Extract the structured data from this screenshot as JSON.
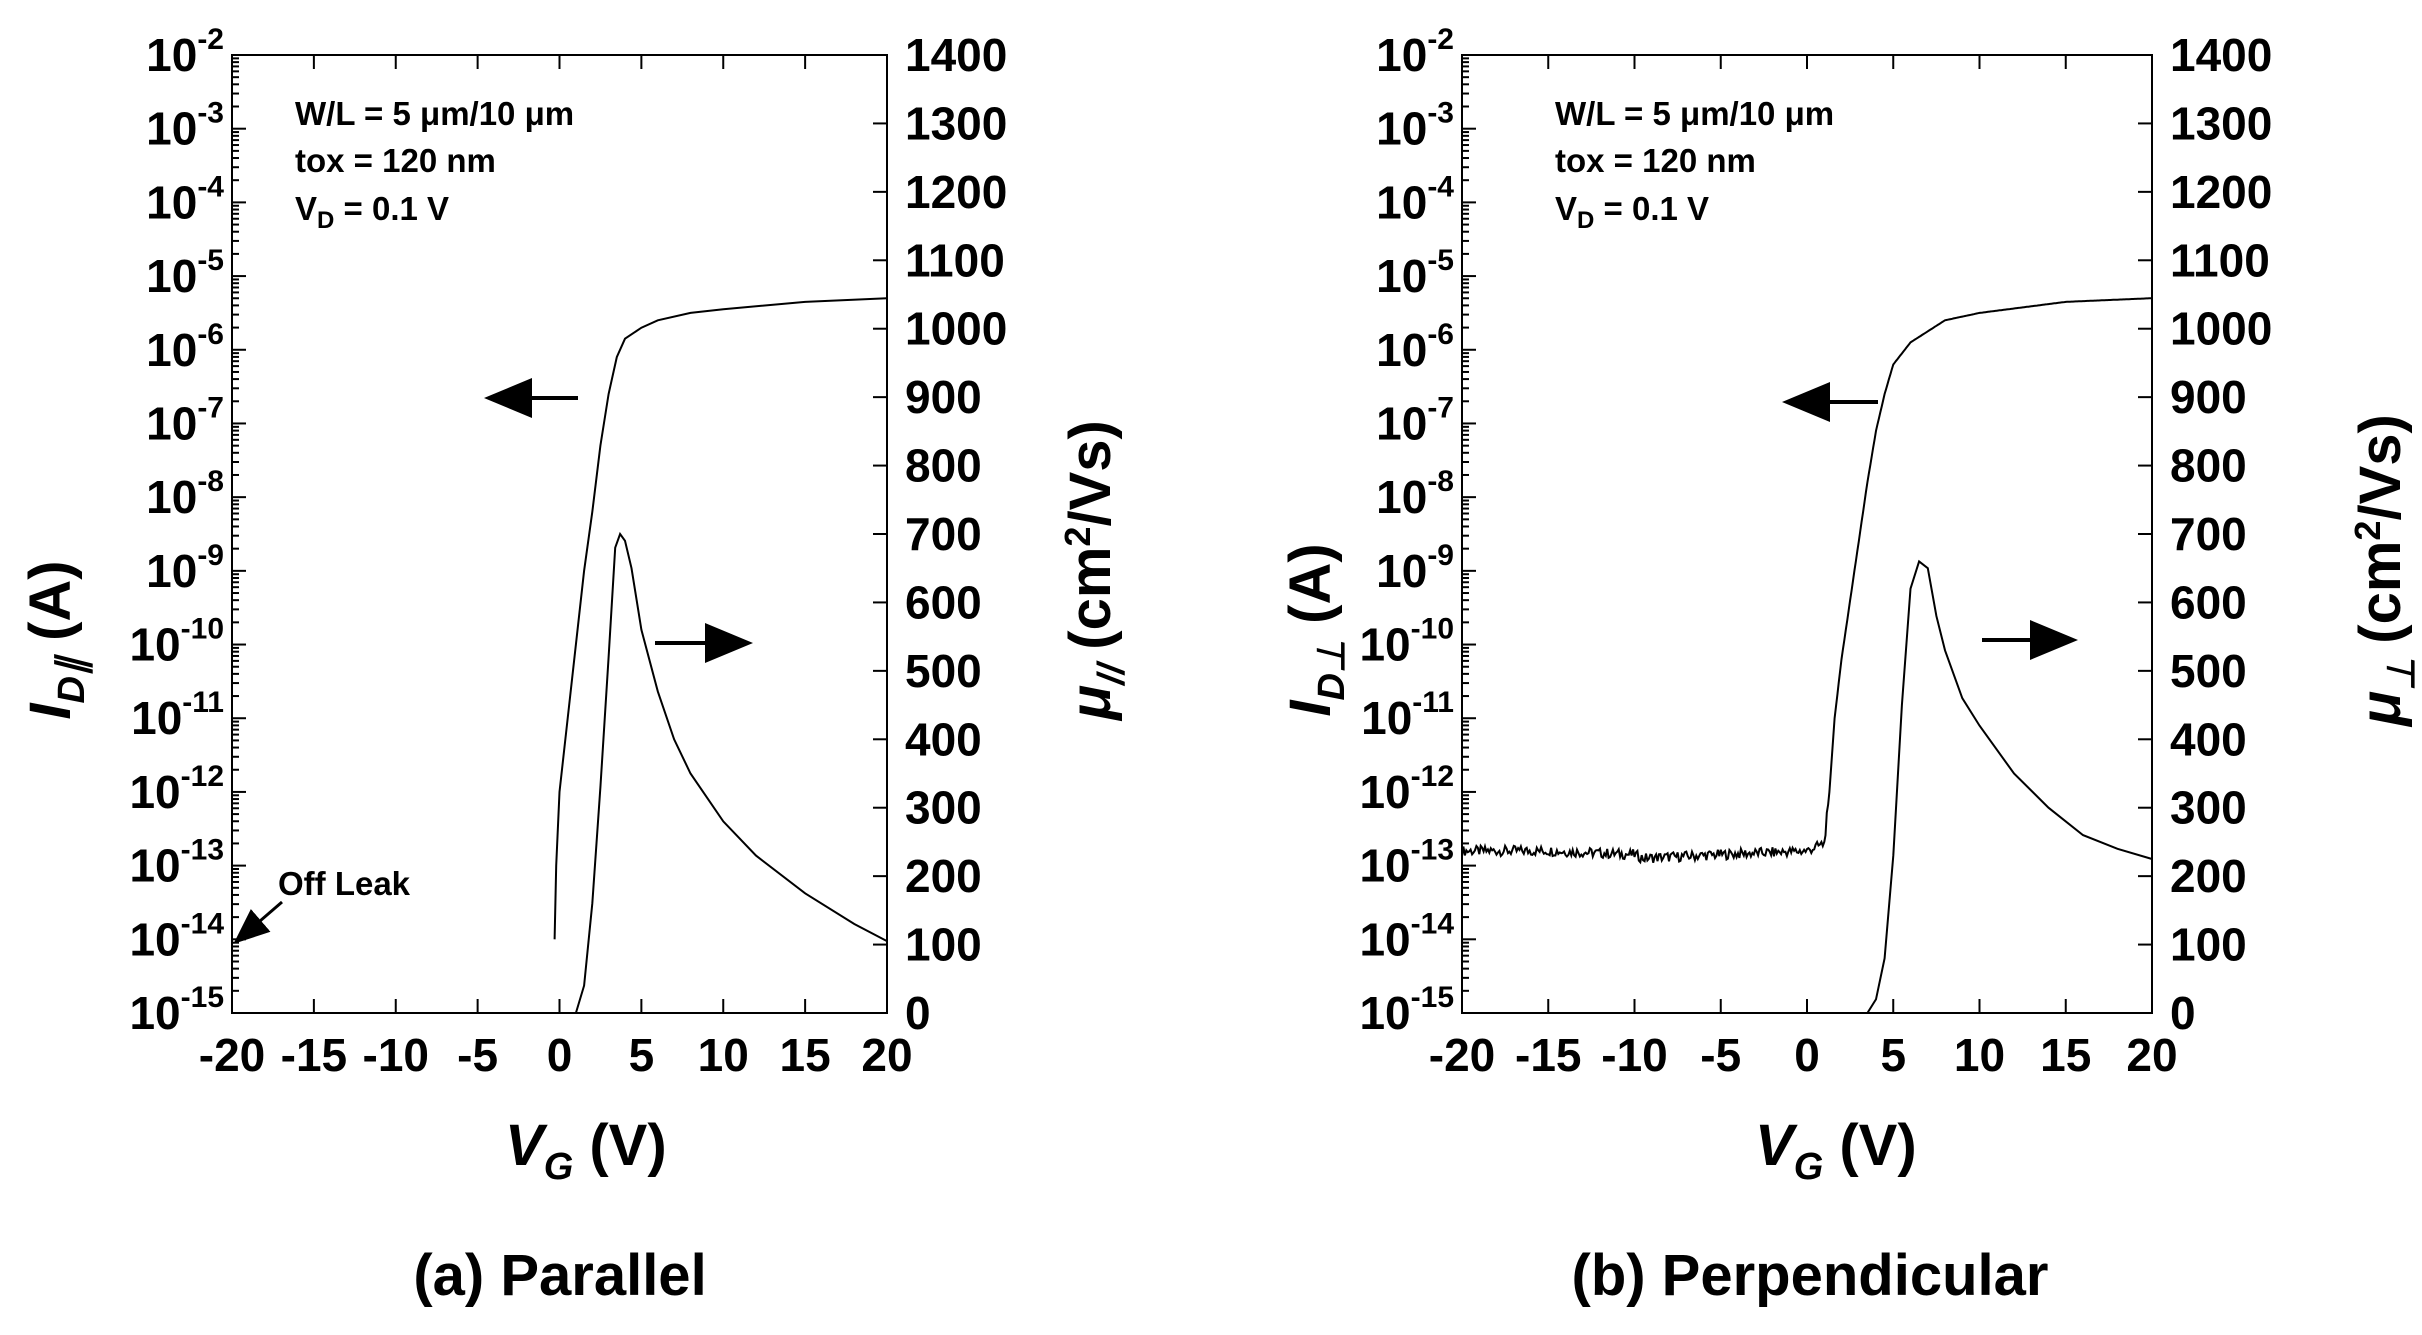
{
  "chart_data": [
    {
      "type": "line",
      "caption": "(a) Parallel",
      "xlabel": "V",
      "xlabel_sub": "G",
      "xlabel_unit": " (V)",
      "xlim": [
        -20,
        20
      ],
      "x_ticks": [
        "-20",
        "-15",
        "-10",
        "-5",
        "0",
        "5",
        "10",
        "15",
        "20"
      ],
      "y_left_label": "I",
      "y_left_sub": "D∥",
      "y_left_unit": " (A)",
      "y_left_scale": "log",
      "y_left_exp_range": [
        -15,
        -2
      ],
      "y_left_ticks": [
        "-15",
        "-14",
        "-13",
        "-12",
        "-11",
        "-10",
        "-9",
        "-8",
        "-7",
        "-6",
        "-5",
        "-4",
        "-3",
        "-2"
      ],
      "y_right_label": "μ",
      "y_right_sub": "//",
      "y_right_unit": " (cm²/Vs)",
      "y_right_unit_parts": [
        "(cm",
        "2",
        "/Vs)"
      ],
      "y_right_lim": [
        0,
        1400
      ],
      "y_right_ticks": [
        "0",
        "100",
        "200",
        "300",
        "400",
        "500",
        "600",
        "700",
        "800",
        "900",
        "1000",
        "1100",
        "1200",
        "1300",
        "1400"
      ],
      "annotations": [
        "W/L = 5 μm/10 μm",
        "tox = 120 nm",
        "V",
        "D",
        " = 0.1 V"
      ],
      "leak_label": "Off Leak",
      "series": [
        {
          "name": "I_D (left, log A)",
          "axis": "left",
          "x": [
            -0.3,
            -0.2,
            0.0,
            0.5,
            1.0,
            1.5,
            2.0,
            2.5,
            3.0,
            3.5,
            4.0,
            5.0,
            6.0,
            8.0,
            10.0,
            15.0,
            20.0
          ],
          "y": [
            -14.0,
            -13.0,
            -12.0,
            -11.0,
            -10.0,
            -9.0,
            -8.2,
            -7.3,
            -6.6,
            -6.1,
            -5.85,
            -5.7,
            -5.6,
            -5.5,
            -5.45,
            -5.35,
            -5.3
          ]
        },
        {
          "name": "mobility (right, cm2/Vs)",
          "axis": "right",
          "x": [
            1.0,
            1.5,
            2.0,
            2.5,
            3.0,
            3.4,
            3.7,
            4.0,
            4.4,
            5.0,
            6.0,
            7.0,
            8.0,
            10.0,
            12.0,
            15.0,
            18.0,
            20.0
          ],
          "y": [
            0,
            40,
            160,
            330,
            520,
            680,
            700,
            690,
            650,
            560,
            470,
            400,
            350,
            280,
            230,
            175,
            130,
            105
          ]
        }
      ]
    },
    {
      "type": "line",
      "caption": "(b) Perpendicular",
      "xlabel": "V",
      "xlabel_sub": "G",
      "xlabel_unit": " (V)",
      "xlim": [
        -20,
        20
      ],
      "x_ticks": [
        "-20",
        "-15",
        "-10",
        "-5",
        "0",
        "5",
        "10",
        "15",
        "20"
      ],
      "y_left_label": "I",
      "y_left_sub": "D⊥",
      "y_left_unit": " (A)",
      "y_left_scale": "log",
      "y_left_exp_range": [
        -15,
        -2
      ],
      "y_left_ticks": [
        "-15",
        "-14",
        "-13",
        "-12",
        "-11",
        "-10",
        "-9",
        "-8",
        "-7",
        "-6",
        "-5",
        "-4",
        "-3",
        "-2"
      ],
      "y_right_label": "μ",
      "y_right_sub": "⊥",
      "y_right_unit": " (cm²/Vs)",
      "y_right_unit_parts": [
        "(cm",
        "2",
        "/Vs)"
      ],
      "y_right_lim": [
        0,
        1400
      ],
      "y_right_ticks": [
        "0",
        "100",
        "200",
        "300",
        "400",
        "500",
        "600",
        "700",
        "800",
        "900",
        "1000",
        "1100",
        "1200",
        "1300",
        "1400"
      ],
      "annotations": [
        "W/L = 5 μm/10 μm",
        "tox = 120 nm",
        "V",
        "D",
        " = 0.1 V"
      ],
      "series": [
        {
          "name": "I_D (left, log A)",
          "axis": "left",
          "x": [
            -20,
            -15,
            -10,
            -9.5,
            -5,
            0,
            1.0,
            1.3,
            1.6,
            2.0,
            2.5,
            3.0,
            3.5,
            4.0,
            4.5,
            5.0,
            6.0,
            7.0,
            8.0,
            10.0,
            15.0,
            20.0
          ],
          "y": [
            -12.8,
            -12.8,
            -12.85,
            -12.9,
            -12.85,
            -12.8,
            -12.7,
            -12.0,
            -11.0,
            -10.2,
            -9.4,
            -8.6,
            -7.8,
            -7.1,
            -6.6,
            -6.2,
            -5.9,
            -5.75,
            -5.6,
            -5.5,
            -5.35,
            -5.3
          ]
        },
        {
          "name": "mobility (right, cm2/Vs)",
          "axis": "right",
          "x": [
            3.5,
            4.0,
            4.5,
            5.0,
            5.5,
            6.0,
            6.5,
            7.0,
            7.5,
            8.0,
            9.0,
            10.0,
            12.0,
            14.0,
            16.0,
            18.0,
            20.0
          ],
          "y": [
            0,
            20,
            80,
            230,
            450,
            620,
            660,
            650,
            580,
            530,
            460,
            420,
            350,
            300,
            260,
            240,
            225
          ]
        }
      ]
    }
  ]
}
